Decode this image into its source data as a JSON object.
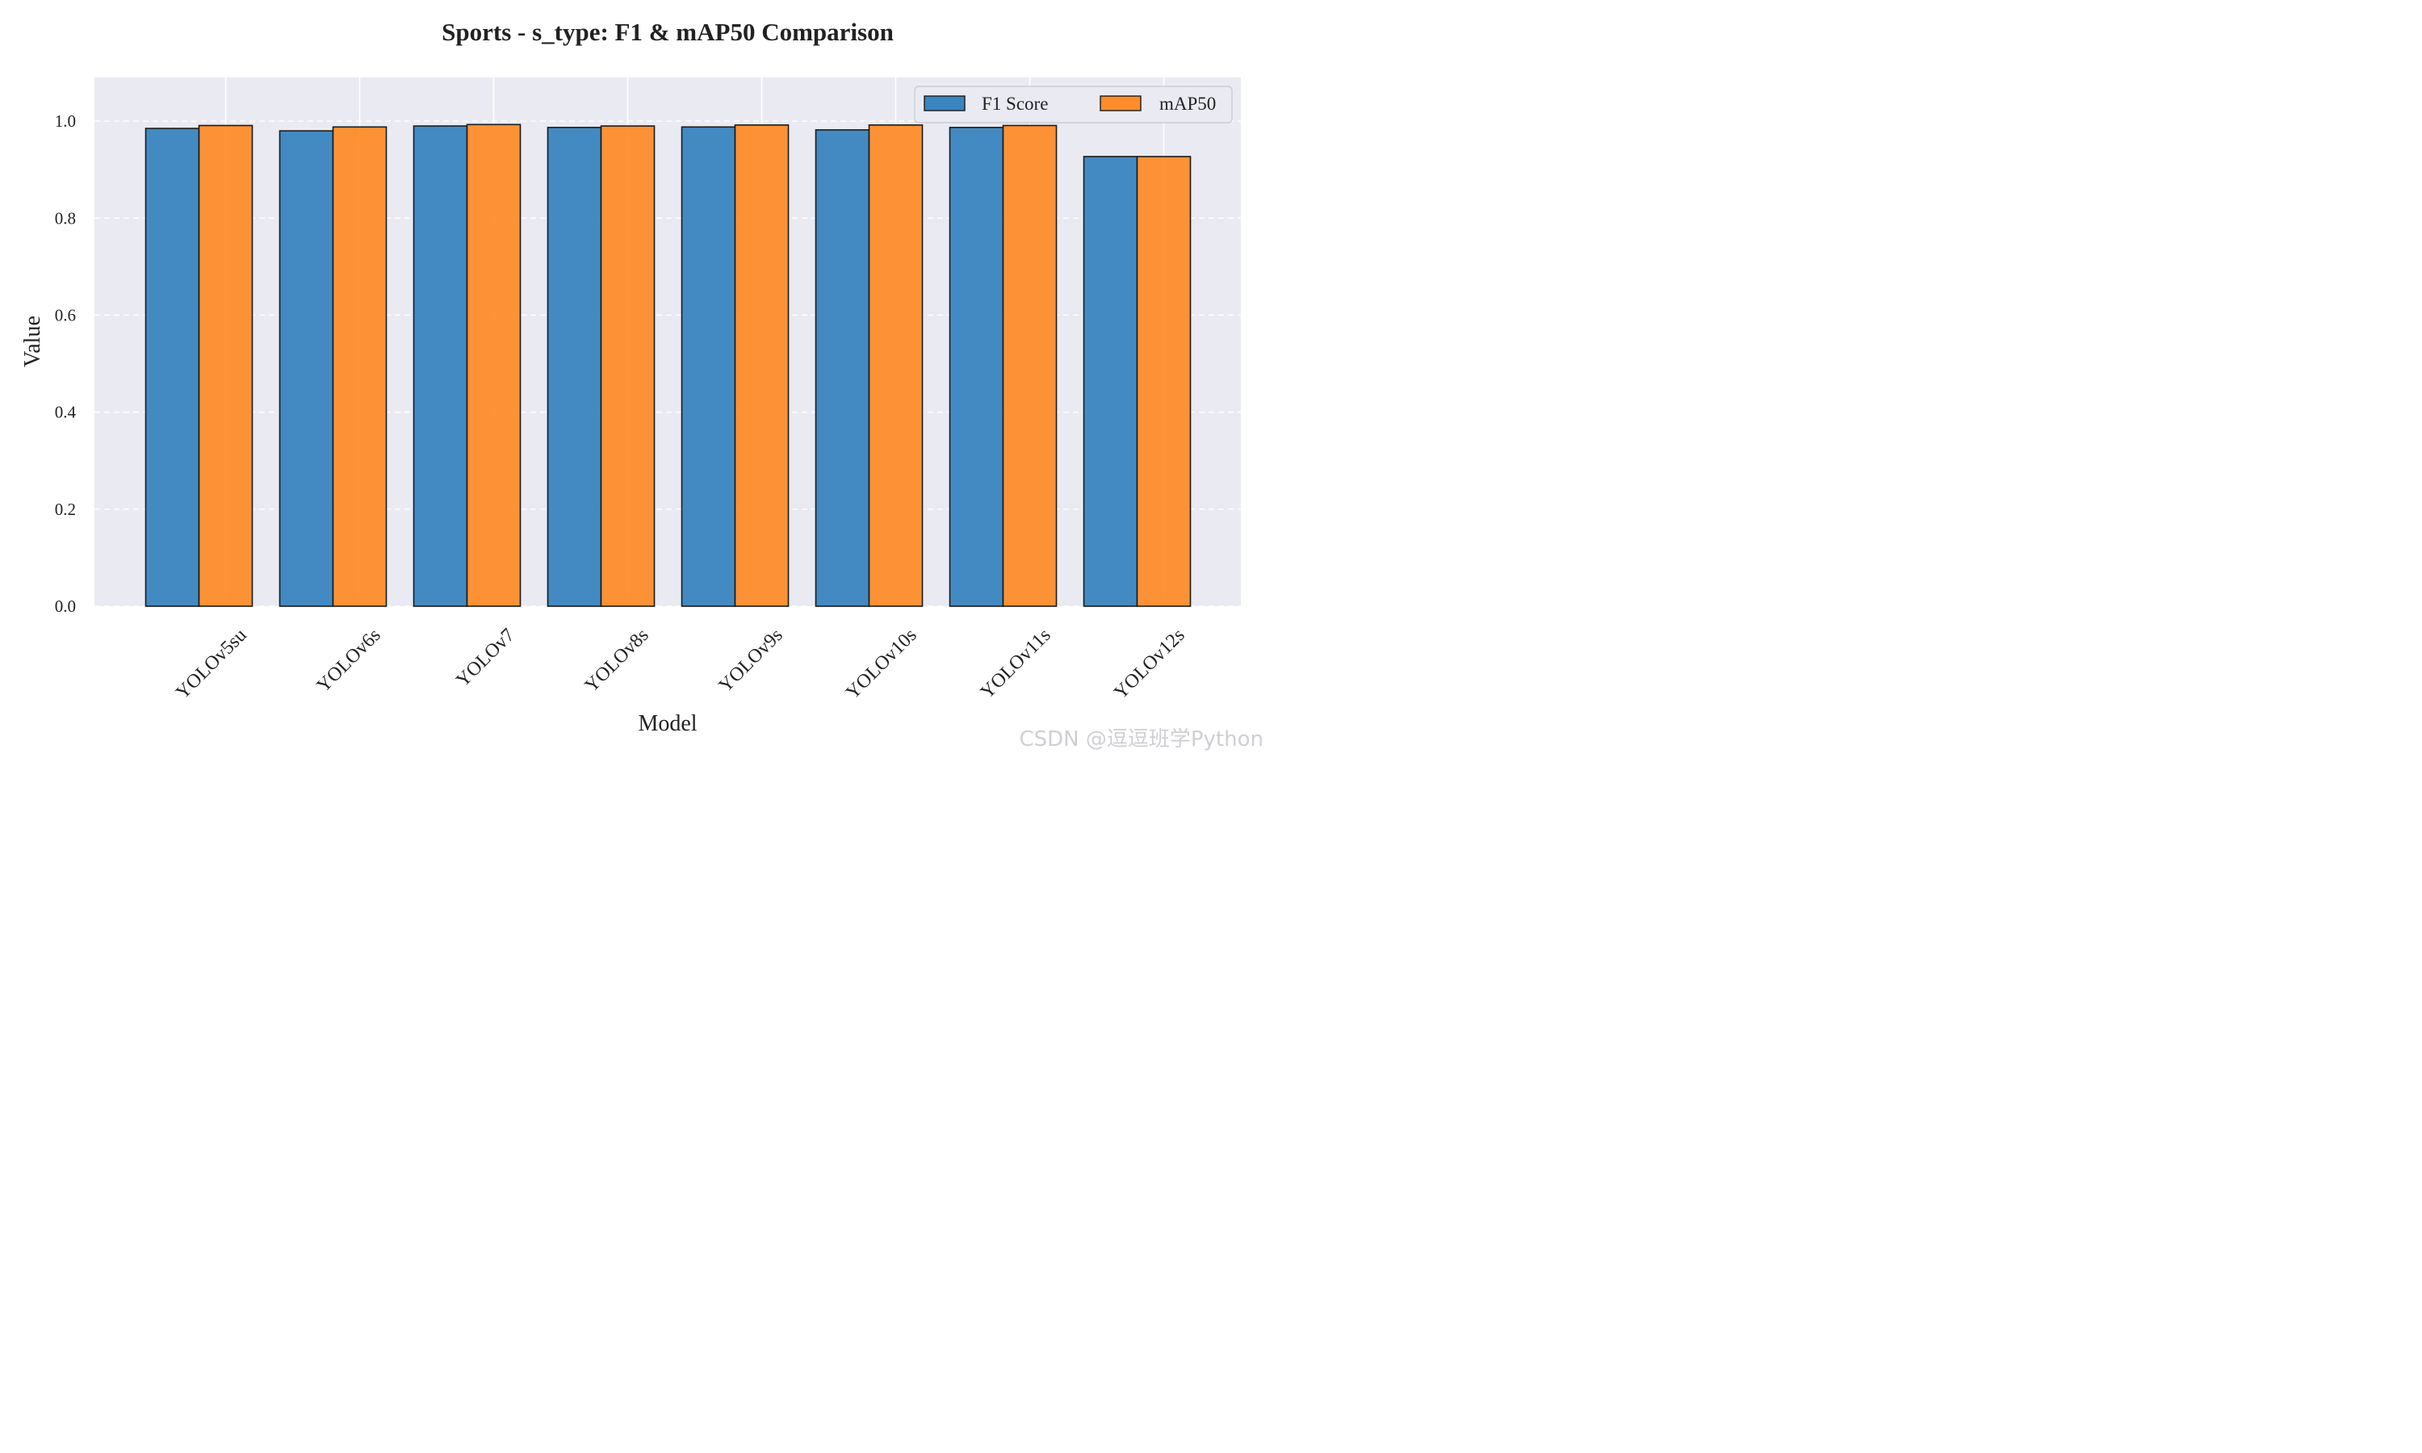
{
  "chart_data": {
    "type": "bar",
    "title": "Sports - s_type: F1 & mAP50 Comparison",
    "xlabel": "Model",
    "ylabel": "Value",
    "ylim": [
      0,
      1.09
    ],
    "yticks": [
      "0.0",
      "0.2",
      "0.4",
      "0.6",
      "0.8",
      "1.0"
    ],
    "grid": true,
    "legend_position": "top-right",
    "categories": [
      "YOLOv5su",
      "YOLOv6s",
      "YOLOv7",
      "YOLOv8s",
      "YOLOv9s",
      "YOLOv10s",
      "YOLOv11s",
      "YOLOv12s"
    ],
    "series": [
      {
        "name": "F1 Score",
        "color": "#3a85bf",
        "values": [
          0.985,
          0.98,
          0.99,
          0.987,
          0.988,
          0.982,
          0.987,
          0.927
        ]
      },
      {
        "name": "mAP50",
        "color": "#fe8c2a",
        "values": [
          0.991,
          0.988,
          0.993,
          0.99,
          0.992,
          0.992,
          0.991,
          0.927
        ]
      }
    ]
  },
  "watermark": "CSDN @逗逗班学Python"
}
